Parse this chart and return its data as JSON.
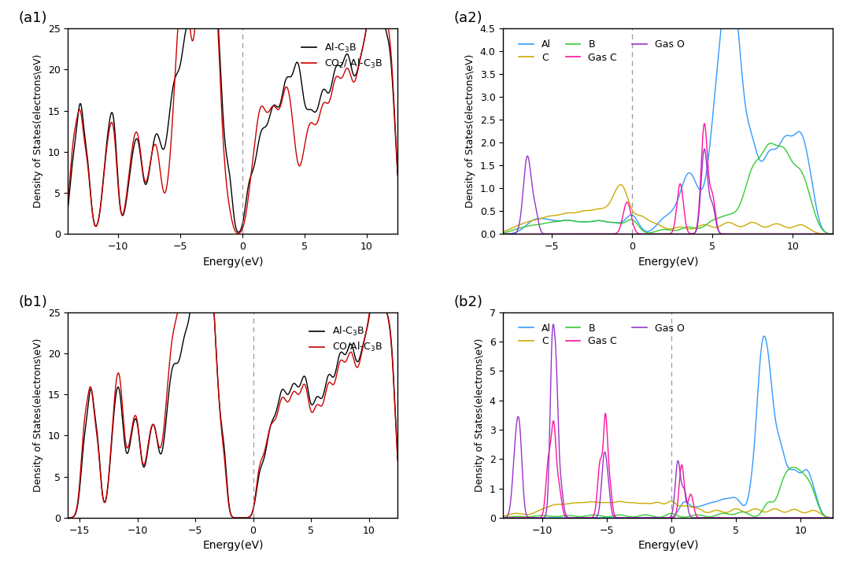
{
  "panels": {
    "a1": {
      "label": "(a1)",
      "xlim": [
        -14,
        12.5
      ],
      "ylim": [
        0,
        25
      ],
      "xticks": [
        -10,
        -5,
        0,
        5,
        10
      ],
      "xlabel": "Energy(eV)",
      "ylabel": "Density of States(electrons\\eV)",
      "dashed_x": 0,
      "legend1": "Al-C$_3$B",
      "legend2": "CO$_2$/ Al-C$_3$B",
      "color1": "#000000",
      "color2": "#cc0000"
    },
    "a2": {
      "label": "(a2)",
      "xlim": [
        -8,
        12.5
      ],
      "ylim": [
        0,
        4.5
      ],
      "xticks": [
        -5,
        0,
        5,
        10
      ],
      "xlabel": "Energy(eV)",
      "ylabel": "Density of States(electrons\\eV)",
      "dashed_x": 0,
      "legend_entries": [
        {
          "label": "Al",
          "color": "#3399ff"
        },
        {
          "label": "C",
          "color": "#ccaa00"
        },
        {
          "label": "B",
          "color": "#33cc33"
        },
        {
          "label": "Gas C",
          "color": "#ff1199"
        },
        {
          "label": "Gas O",
          "color": "#9933cc"
        }
      ]
    },
    "b1": {
      "label": "(b1)",
      "xlim": [
        -16,
        12.5
      ],
      "ylim": [
        0,
        25
      ],
      "xticks": [
        -15,
        -10,
        -5,
        0,
        5,
        10
      ],
      "xlabel": "Energy(eV)",
      "ylabel": "Density of States(electrons\\eV)",
      "dashed_x": 0,
      "legend1": "Al-C$_3$B",
      "legend2": "CO/Al-C$_3$B",
      "color1": "#000000",
      "color2": "#cc0000"
    },
    "b2": {
      "label": "(b2)",
      "xlim": [
        -13,
        12.5
      ],
      "ylim": [
        0,
        7
      ],
      "xticks": [
        -10,
        -5,
        0,
        5,
        10
      ],
      "xlabel": "Energy(eV)",
      "ylabel": "Density of States(electrons\\eV)",
      "dashed_x": 0,
      "legend_entries": [
        {
          "label": "Al",
          "color": "#3399ff"
        },
        {
          "label": "C",
          "color": "#ccaa00"
        },
        {
          "label": "B",
          "color": "#33cc33"
        },
        {
          "label": "Gas C",
          "color": "#ff1199"
        },
        {
          "label": "Gas O",
          "color": "#9933cc"
        }
      ]
    }
  }
}
